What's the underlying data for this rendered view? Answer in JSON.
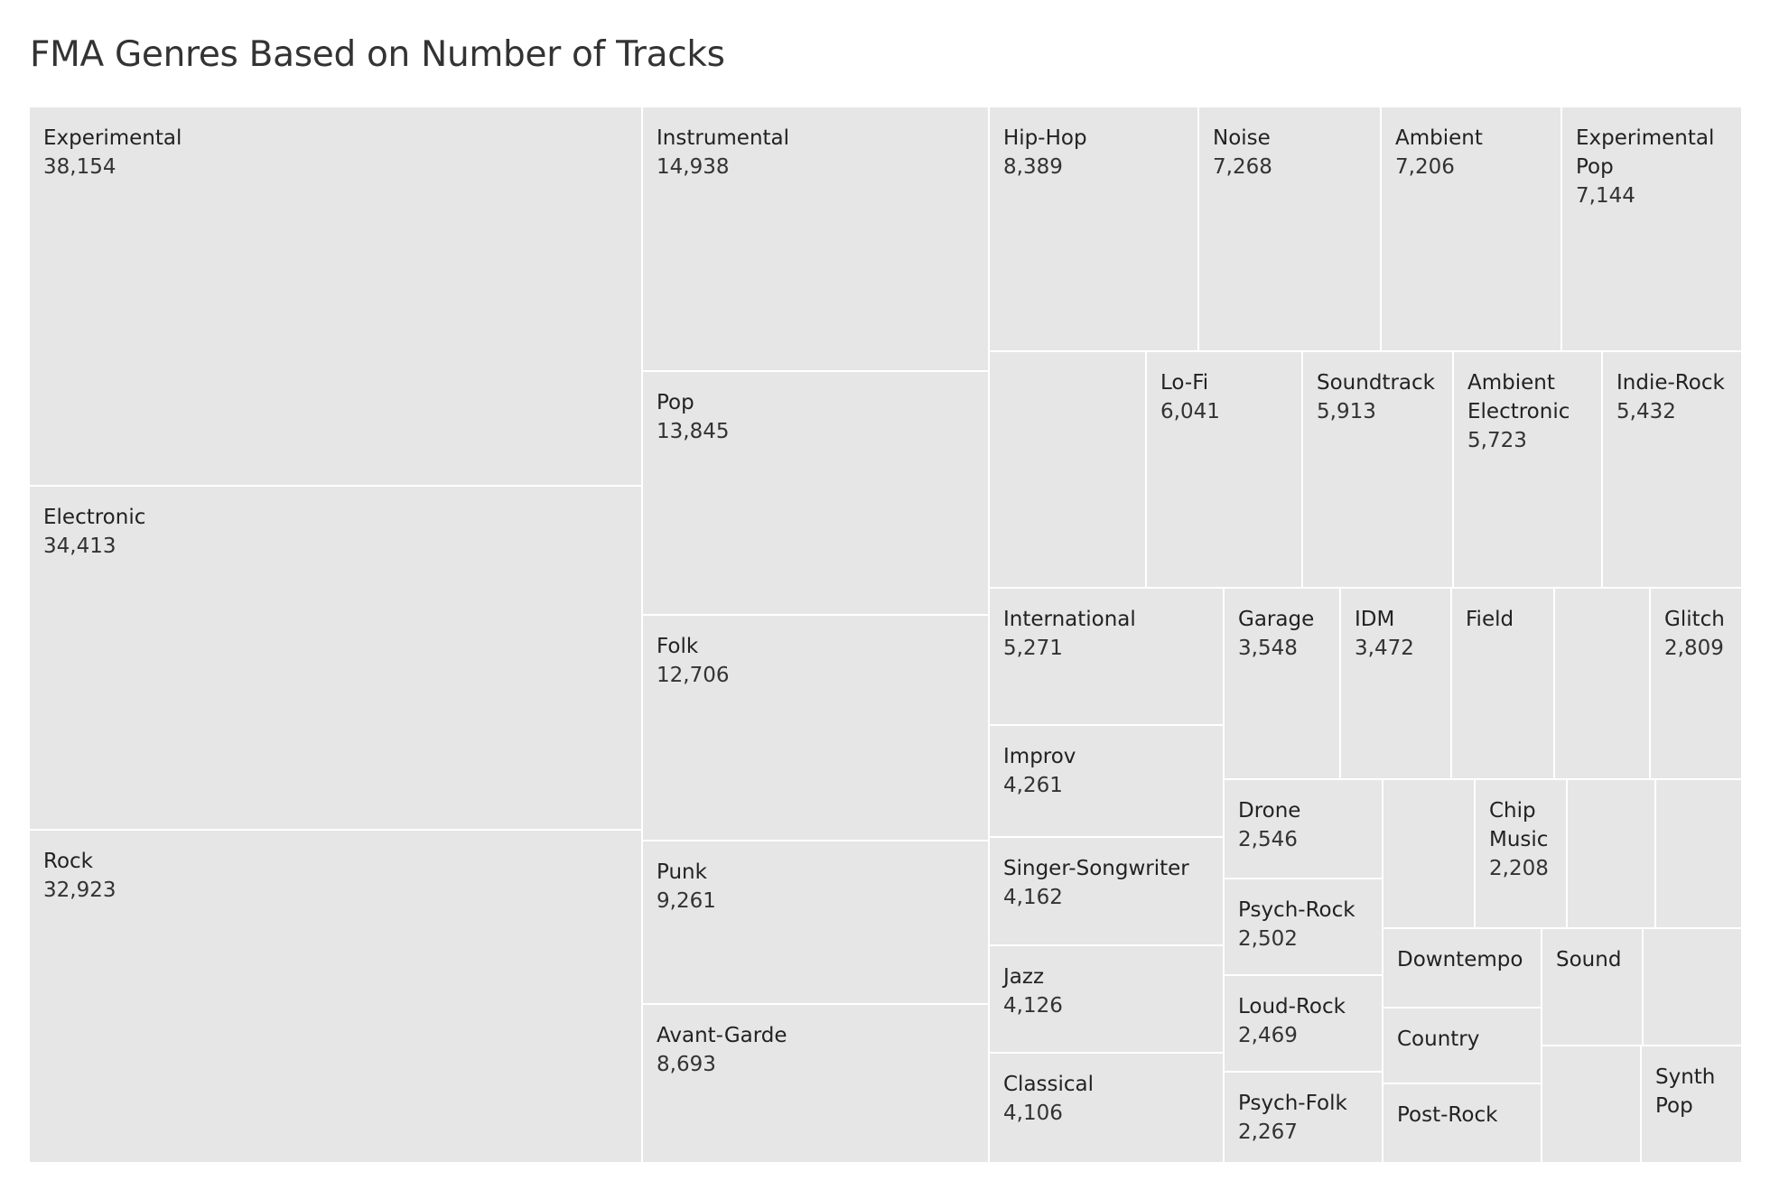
{
  "chart_data": {
    "type": "treemap",
    "title": "FMA Genres Based on Number of Tracks",
    "unit": "tracks",
    "items": [
      {
        "name": "Experimental",
        "value": "38,154"
      },
      {
        "name": "Electronic",
        "value": "34,413"
      },
      {
        "name": "Rock",
        "value": "32,923"
      },
      {
        "name": "Instrumental",
        "value": "14,938"
      },
      {
        "name": "Pop",
        "value": "13,845"
      },
      {
        "name": "Folk",
        "value": "12,706"
      },
      {
        "name": "Punk",
        "value": "9,261"
      },
      {
        "name": "Avant-Garde",
        "value": "8,693"
      },
      {
        "name": "Hip-Hop",
        "value": "8,389"
      },
      {
        "name": "Noise",
        "value": "7,268"
      },
      {
        "name": "Ambient",
        "value": "7,206"
      },
      {
        "name": "Experimental Pop",
        "value": "7,144"
      },
      {
        "name": "",
        "value": ""
      },
      {
        "name": "Lo-Fi",
        "value": "6,041"
      },
      {
        "name": "Soundtrack",
        "value": "5,913"
      },
      {
        "name": "Ambient Electronic",
        "value": "5,723"
      },
      {
        "name": "Indie-Rock",
        "value": "5,432"
      },
      {
        "name": "International",
        "value": "5,271"
      },
      {
        "name": "Improv",
        "value": "4,261"
      },
      {
        "name": "Singer-Songwriter",
        "value": "4,162"
      },
      {
        "name": "Jazz",
        "value": "4,126"
      },
      {
        "name": "Classical",
        "value": "4,106"
      },
      {
        "name": "Garage",
        "value": "3,548"
      },
      {
        "name": "IDM",
        "value": "3,472"
      },
      {
        "name": "Field",
        "value": ""
      },
      {
        "name": "",
        "value": ""
      },
      {
        "name": "Glitch",
        "value": "2,809"
      },
      {
        "name": "Drone",
        "value": "2,546"
      },
      {
        "name": "Psych-Rock",
        "value": "2,502"
      },
      {
        "name": "Loud-Rock",
        "value": "2,469"
      },
      {
        "name": "Psych-Folk",
        "value": "2,267"
      },
      {
        "name": "",
        "value": ""
      },
      {
        "name": "Chip Music",
        "value": "2,208"
      },
      {
        "name": "",
        "value": ""
      },
      {
        "name": "",
        "value": ""
      },
      {
        "name": "Downtempo",
        "value": ""
      },
      {
        "name": "Country",
        "value": ""
      },
      {
        "name": "Post-Rock",
        "value": ""
      },
      {
        "name": "Sound",
        "value": ""
      },
      {
        "name": "",
        "value": ""
      },
      {
        "name": "",
        "value": ""
      },
      {
        "name": "Synth Pop",
        "value": ""
      }
    ]
  },
  "colors": {
    "cell": "#e6e6e6",
    "border": "#ffffff",
    "text": "#222222"
  }
}
